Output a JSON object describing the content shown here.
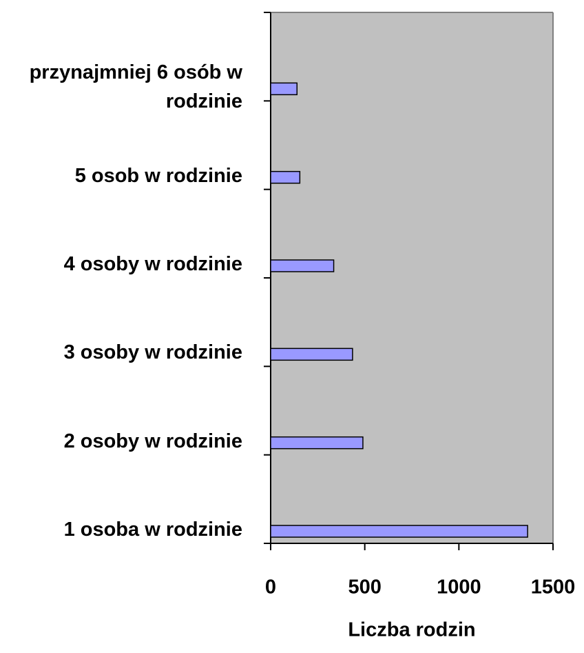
{
  "chart_data": {
    "type": "barh",
    "categories": [
      "1 osoba w rodzinie",
      "2 osoby w rodzinie",
      "3 osoby w rodzinie",
      "4 osoby w rodzinie",
      "5 osob w rodzinie",
      "przynajmniej 6 osób w rodzinie"
    ],
    "values": [
      1365,
      490,
      435,
      335,
      155,
      140
    ],
    "color": "#9999ff",
    "xlabel": "Liczba rodzin",
    "xlim": [
      0,
      1500
    ],
    "xticks": [
      0,
      500,
      1000,
      1500
    ],
    "background": "#c0c0c0"
  }
}
